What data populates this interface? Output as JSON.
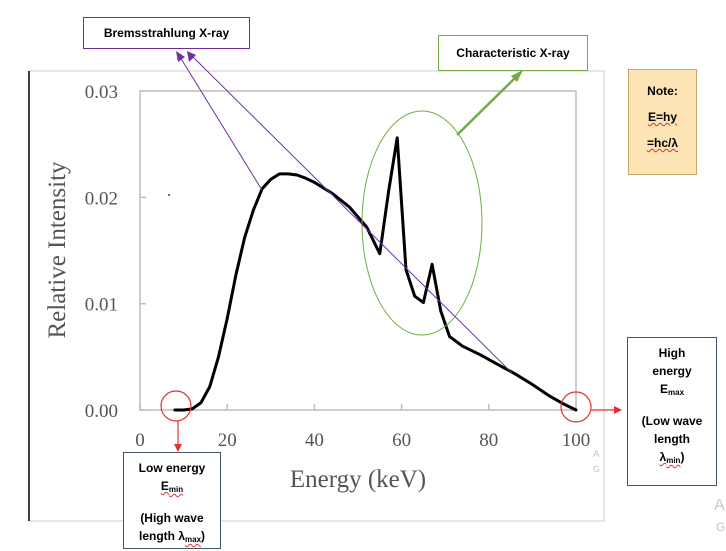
{
  "chart_data": {
    "type": "line",
    "title": "",
    "xlabel": "Energy (keV)",
    "ylabel": "Relative Intensity",
    "xlim": [
      0,
      100
    ],
    "ylim": [
      0,
      0.03
    ],
    "xticks": [
      0,
      20,
      40,
      60,
      80,
      100
    ],
    "xtick_labels": [
      "0",
      "20",
      "40",
      "60",
      "80",
      "100"
    ],
    "yticks": [
      0,
      0.01,
      0.02,
      0.03
    ],
    "ytick_labels": [
      "0.00",
      "0.01",
      "0.02",
      "0.03"
    ],
    "grid": false,
    "series": [
      {
        "x": [
          8,
          10,
          12,
          14,
          16,
          18,
          20,
          22,
          24,
          26,
          28,
          30,
          32,
          34,
          36,
          38,
          40,
          44,
          48,
          52,
          55,
          57,
          59,
          61,
          63,
          65,
          67,
          69,
          71,
          74,
          78,
          82,
          86,
          90,
          94,
          97,
          100
        ],
        "y": [
          0.0,
          0.0,
          0.0001,
          0.0007,
          0.0022,
          0.005,
          0.0086,
          0.0127,
          0.0162,
          0.0188,
          0.0208,
          0.0217,
          0.0222,
          0.0222,
          0.0221,
          0.0218,
          0.0214,
          0.0204,
          0.0191,
          0.0172,
          0.0147,
          0.0205,
          0.0256,
          0.0132,
          0.0107,
          0.0101,
          0.0137,
          0.0093,
          0.0069,
          0.006,
          0.0052,
          0.0043,
          0.0034,
          0.0024,
          0.0013,
          0.0006,
          0.0
        ]
      }
    ]
  },
  "annotations": {
    "bremsstrahlung": "Bremsstrahlung X-ray",
    "characteristic": "Characteristic X-ray",
    "note": {
      "title": "Note:",
      "line1": "E=hy",
      "line2": "=hc/λ"
    },
    "high": {
      "line1": "High",
      "line2": "energy",
      "e_main": "E",
      "e_sub": "max",
      "line4": "(Low wave",
      "line5": "length",
      "lambda_main": "λ",
      "lambda_sub": "min",
      "close": ")"
    },
    "low": {
      "line1": "Low energy",
      "e_main": "E",
      "e_sub": "min",
      "line3": "(High wave",
      "lambda_prefix": "length λ",
      "lambda_sub": "max",
      "close": ")"
    }
  },
  "faint_text": [
    "A",
    "G",
    "A",
    "G"
  ],
  "colors": {
    "curve": "#000000",
    "bremsstrahlung": "#7030a0",
    "characteristic": "#70ad47",
    "marker": "#e03030",
    "note_bg": "#fce4b5"
  }
}
